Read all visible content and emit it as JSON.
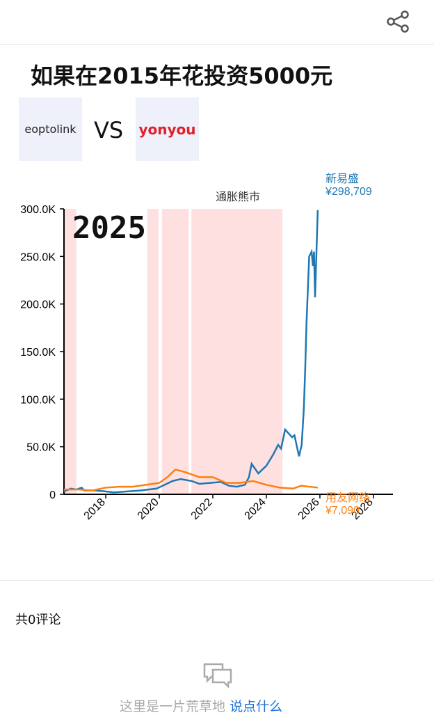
{
  "title": "如果在2015年花投资5000元",
  "logos": [
    {
      "label": "eoptolink"
    },
    {
      "label": "yonyou"
    }
  ],
  "vs": "VS",
  "chart_data": {
    "type": "line",
    "year_label": "2025",
    "annotation": "通胀熊市",
    "shaded_regions": [
      [
        2016.44,
        2016.9
      ],
      [
        2019.55,
        2019.97
      ],
      [
        2020.1,
        2021.1
      ],
      [
        2021.2,
        2024.6
      ]
    ],
    "xlim": [
      2016.44,
      2028.73
    ],
    "xticks": [
      2018,
      2020,
      2022,
      2024,
      2026,
      2028
    ],
    "ylim": [
      0,
      300000
    ],
    "yticks": [
      {
        "value": 0,
        "label": "0"
      },
      {
        "value": 50000,
        "label": "50.0K"
      },
      {
        "value": 100000,
        "label": "100.0K"
      },
      {
        "value": 150000,
        "label": "150.0K"
      },
      {
        "value": 200000,
        "label": "200.0K"
      },
      {
        "value": 250000,
        "label": "250.0K"
      },
      {
        "value": 300000,
        "label": "300.0K"
      }
    ],
    "series": [
      {
        "name": "新易盛",
        "color": "#1f77b4",
        "x": [
          2016.44,
          2016.7,
          2016.9,
          2017.1,
          2017.2,
          2017.6,
          2018.0,
          2018.3,
          2018.8,
          2019.3,
          2019.6,
          2019.9,
          2020.2,
          2020.5,
          2020.8,
          2021.2,
          2021.5,
          2021.9,
          2022.3,
          2022.6,
          2022.9,
          2023.2,
          2023.35,
          2023.45,
          2023.7,
          2024.0,
          2024.26,
          2024.44,
          2024.55,
          2024.7,
          2024.96,
          2025.05,
          2025.22,
          2025.32,
          2025.4,
          2025.45,
          2025.5,
          2025.6,
          2025.69,
          2025.74,
          2025.78,
          2025.82,
          2025.92
        ],
        "values": [
          3000,
          6000,
          5000,
          7000,
          4000,
          4000,
          3000,
          2000,
          3000,
          4000,
          5000,
          6000,
          10000,
          14000,
          16000,
          14000,
          11000,
          12000,
          13000,
          9000,
          8000,
          10000,
          18000,
          32000,
          22000,
          30000,
          42000,
          52000,
          48000,
          68000,
          60000,
          62000,
          40000,
          52000,
          90000,
          130000,
          180000,
          250000,
          255000,
          240000,
          255000,
          207000,
          298709
        ],
        "value_labels": [
          null,
          null,
          null,
          null,
          null,
          null,
          null,
          null,
          null,
          null,
          null,
          null,
          null,
          null,
          null,
          null,
          null,
          null,
          null,
          null,
          null,
          null,
          null,
          null,
          null,
          null,
          null,
          null,
          null,
          null,
          null,
          null,
          null,
          null,
          null,
          null,
          null,
          null,
          null,
          null,
          null,
          null,
          "¥298,709"
        ]
      },
      {
        "name": "用友网络",
        "color": "#ff7f0e",
        "x": [
          2016.44,
          2017.0,
          2017.5,
          2018.0,
          2018.5,
          2019.0,
          2019.5,
          2020.0,
          2020.3,
          2020.6,
          2021.0,
          2021.5,
          2022.0,
          2022.5,
          2023.0,
          2023.5,
          2024.0,
          2024.5,
          2025.0,
          2025.3,
          2025.6,
          2025.92
        ],
        "values": [
          5000,
          5000,
          4000,
          7000,
          8000,
          8000,
          10000,
          12000,
          18000,
          26000,
          23000,
          18000,
          18000,
          12000,
          12000,
          14000,
          10000,
          7000,
          6000,
          9000,
          8000,
          7090
        ],
        "value_labels": [
          null,
          null,
          null,
          null,
          null,
          null,
          null,
          null,
          null,
          null,
          null,
          null,
          null,
          null,
          null,
          null,
          null,
          null,
          null,
          null,
          null,
          "¥7,090"
        ]
      }
    ]
  },
  "comments": {
    "count_label": "共0评论",
    "empty_text": "这里是一片荒草地",
    "action": "说点什么"
  }
}
